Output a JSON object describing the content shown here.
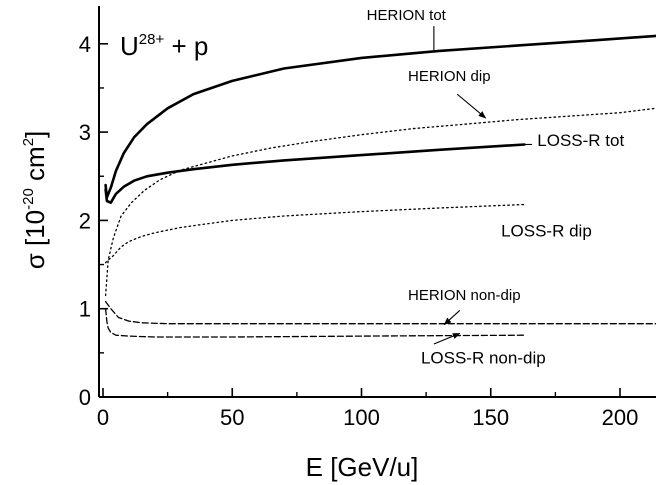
{
  "chart_data": {
    "type": "line",
    "title": "",
    "annotation_system": {
      "base": "U",
      "superscript": "28+",
      "suffix": " + p"
    },
    "xlabel": "E [GeV/u]",
    "ylabel": {
      "prefix": "σ [10",
      "exp1": "-20",
      "middle": " cm",
      "exp2": "2",
      "suffix": "]"
    },
    "xlim": [
      -2,
      220
    ],
    "ylim": [
      0,
      4.4
    ],
    "x_ticks": [
      0,
      50,
      100,
      150,
      200
    ],
    "y_ticks": [
      0,
      1,
      2,
      3,
      4
    ],
    "grid": false,
    "legend": "none (curves labelled inline)",
    "series": [
      {
        "name": "HERION tot",
        "style": "solid-thick",
        "x": [
          1,
          1.5,
          3,
          5,
          8,
          12,
          17,
          25,
          35,
          50,
          70,
          100,
          130,
          160,
          190,
          220
        ],
        "y": [
          2.4,
          2.26,
          2.37,
          2.56,
          2.76,
          2.94,
          3.09,
          3.27,
          3.43,
          3.58,
          3.72,
          3.84,
          3.92,
          3.98,
          4.04,
          4.09
        ]
      },
      {
        "name": "HERION dip",
        "style": "dotted",
        "x": [
          1,
          2,
          4,
          7,
          11,
          16,
          22,
          30,
          40,
          50,
          65,
          80,
          100,
          120,
          140,
          160,
          180,
          200,
          220
        ],
        "y": [
          1.15,
          1.55,
          1.8,
          2.05,
          2.2,
          2.34,
          2.46,
          2.57,
          2.65,
          2.73,
          2.82,
          2.89,
          2.97,
          3.04,
          3.09,
          3.14,
          3.18,
          3.22,
          3.27
        ]
      },
      {
        "name": "LOSS-R tot",
        "style": "solid-thick",
        "x": [
          1,
          1.5,
          3,
          5,
          8,
          12,
          17,
          25,
          35,
          50,
          70,
          100,
          130,
          163
        ],
        "y": [
          2.35,
          2.22,
          2.2,
          2.3,
          2.38,
          2.45,
          2.5,
          2.54,
          2.58,
          2.63,
          2.68,
          2.74,
          2.8,
          2.86
        ]
      },
      {
        "name": "LOSS-R dip",
        "style": "dotted",
        "x": [
          1,
          2,
          4,
          7,
          10,
          15,
          20,
          30,
          40,
          50,
          70,
          100,
          130,
          163
        ],
        "y": [
          1.52,
          1.55,
          1.6,
          1.7,
          1.76,
          1.82,
          1.86,
          1.92,
          1.96,
          2.0,
          2.05,
          2.1,
          2.14,
          2.18
        ]
      },
      {
        "name": "HERION non-dip",
        "style": "dashed",
        "x": [
          1,
          3,
          6,
          10,
          15,
          25,
          50,
          100,
          150,
          220
        ],
        "y": [
          1.08,
          1.0,
          0.9,
          0.86,
          0.84,
          0.83,
          0.83,
          0.83,
          0.83,
          0.83
        ]
      },
      {
        "name": "LOSS-R non-dip",
        "style": "dashed",
        "x": [
          1,
          1.5,
          2,
          3,
          5,
          10,
          20,
          50,
          100,
          163
        ],
        "y": [
          1.0,
          0.85,
          0.78,
          0.73,
          0.7,
          0.69,
          0.68,
          0.68,
          0.69,
          0.7
        ]
      }
    ],
    "annotations": [
      {
        "text": "HERION tot",
        "series": "HERION tot",
        "tx": 102,
        "ty": 4.27,
        "ax": 128,
        "ay": 4.2,
        "hx": 128,
        "hy": 3.93,
        "arrow": false
      },
      {
        "text": "HERION dip",
        "series": "HERION dip",
        "tx": 118,
        "ty": 3.58,
        "ax": 137,
        "ay": 3.43,
        "hx": 148,
        "hy": 3.16,
        "arrow": true
      },
      {
        "text": "LOSS-R tot",
        "series": "LOSS-R tot",
        "tx": 168,
        "ty": 2.84,
        "ax": 166,
        "ay": 2.86,
        "hx": 162,
        "hy": 2.86,
        "arrow": false
      },
      {
        "text": "LOSS-R dip",
        "series": "LOSS-R dip",
        "tx": 154,
        "ty": 1.82,
        "ax": null,
        "ay": null,
        "hx": null,
        "hy": null,
        "arrow": false
      },
      {
        "text": "HERION non-dip",
        "series": "HERION non-dip",
        "tx": 118,
        "ty": 1.1,
        "ax": 138,
        "ay": 0.98,
        "hx": 132,
        "hy": 0.82,
        "arrow": true
      },
      {
        "text": "LOSS-R non-dip",
        "series": "LOSS-R non-dip",
        "tx": 123,
        "ty": 0.38,
        "ax": 128,
        "ay": 0.6,
        "hx": 138,
        "hy": 0.72,
        "arrow": true
      }
    ]
  }
}
